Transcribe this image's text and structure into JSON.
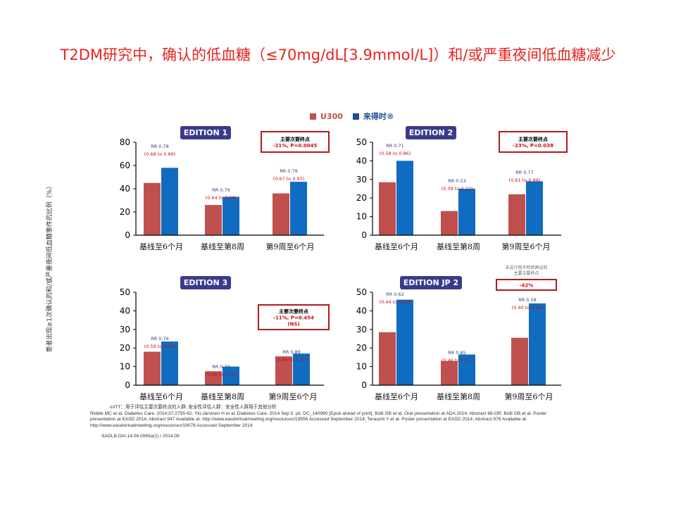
{
  "page": {
    "title": "T2DM研究中，确认的低血糖（≤70mg/dL[3.9mmol/L]）和/或严重夜间低血糖减少",
    "ylabel": "患者出现≥1次确认的和/或严重夜间低血糖事件的比例（%）",
    "legend": [
      {
        "label": "U300",
        "color": "#c0504d"
      },
      {
        "label": "来得时®",
        "color": "#0f6cc0"
      }
    ],
    "footnotes": {
      "mitt": "mITT：用于评估主要次要终点的人群; 安全性评估人群：安全性人群用于其他分析",
      "refs": "Riddle MC et al. Diabetes Care. 2014;37:2755-62; Yki-Järvinen H et al. Diabetes Care. 2014 Sep 5. pii: DC_140990 [Epub ahead of print]; Bolli GB et al. Oral presentation at ADA 2014; Abstract 68-OR. Bolli GB et al. Poster presentation at EASD 2014; Abstract 947 Available at: http://www.easdvirtualmeeting.org/resources/19556 Accessed September 2014; Terauchi Y et al. Poster presentation at EASD 2014; Abstract 976 Available at: http://www.easdvirtualmeeting.org/resources/19078 Accessed September 2014",
      "doc_id": "SAGLB.DIA.14.06.0065a(1) / 2014.09"
    }
  },
  "chart_data": [
    {
      "type": "bar",
      "edition": "EDITION 1",
      "categories": [
        "基线至6个月",
        "基线至第8周",
        "第9周至6个月"
      ],
      "ylim": [
        0,
        80
      ],
      "yticks": [
        0,
        20,
        40,
        60,
        80
      ],
      "series": [
        {
          "name": "U300",
          "values": [
            45,
            26,
            36
          ]
        },
        {
          "name": "来得时®",
          "values": [
            58,
            33,
            46
          ]
        }
      ],
      "rr": [
        {
          "rr": "RR 0.78",
          "ci": "(0.68 to 0.89)"
        },
        {
          "rr": "RR 0.79",
          "ci": "(0.64 to 0.98)"
        },
        {
          "rr": "RR 0.79",
          "ci": "(0.67 to 0.93)"
        }
      ],
      "endpoint": [
        "主要次要终点",
        "-21%, P=0.0045"
      ]
    },
    {
      "type": "bar",
      "edition": "EDITION 2",
      "categories": [
        "基线至6个月",
        "基线至第8周",
        "第9周至6个月"
      ],
      "ylim": [
        0,
        50
      ],
      "yticks": [
        0,
        10,
        20,
        30,
        40,
        50
      ],
      "series": [
        {
          "name": "U300",
          "values": [
            28.5,
            13,
            22
          ]
        },
        {
          "name": "来得时®",
          "values": [
            40,
            25,
            29
          ]
        }
      ],
      "rr": [
        {
          "rr": "RR 0.71",
          "ci": "(0.58 to 0.86)"
        },
        {
          "rr": "RR 0.53",
          "ci": "(0.39 to 0.72)"
        },
        {
          "rr": "RR 0.77",
          "ci": "(0.61 to 0.99)"
        }
      ],
      "endpoint": [
        "主要次要终点",
        "-23%, P=0.038"
      ]
    },
    {
      "type": "bar",
      "edition": "EDITION 3",
      "categories": [
        "基线至6个月",
        "基线至第8周",
        "第9周至6个月"
      ],
      "ylim": [
        0,
        50
      ],
      "yticks": [
        0,
        10,
        20,
        30,
        40,
        50
      ],
      "series": [
        {
          "name": "U300",
          "values": [
            18,
            7.5,
            15.5
          ]
        },
        {
          "name": "来得时®",
          "values": [
            23.5,
            10,
            17
          ]
        }
      ],
      "rr": [
        {
          "rr": "RR 0.76",
          "ci": "(0.59 to 0.99)"
        },
        {
          "rr": "RR 0.74",
          "ci": "(0.48 to 1.13)"
        },
        {
          "rr": "RR 0.89",
          "ci": "(0.66 to 1.20)"
        }
      ],
      "endpoint": [
        "主要次要终点",
        "-11%, P=0.454",
        "(NS)"
      ]
    },
    {
      "type": "bar",
      "edition": "EDITION JP 2",
      "categories": [
        "基线至6个月",
        "基线至第8周",
        "第9周至6个月"
      ],
      "ylim": [
        0,
        50
      ],
      "yticks": [
        0,
        10,
        20,
        30,
        40,
        50
      ],
      "series": [
        {
          "name": "U300",
          "values": [
            28.5,
            13,
            25.5
          ]
        },
        {
          "name": "来得时®",
          "values": [
            46,
            16.5,
            44
          ]
        }
      ],
      "rr": [
        {
          "rr": "RR 0.62",
          "ci": "(0.44 to 0.88)"
        },
        {
          "rr": "RR 0.85",
          "ci": "(0.46 to 1.5..."
        },
        {
          "rr": "RR 0.58",
          "ci": "(0.40 to 0.85)"
        }
      ],
      "endpoint": [
        "-42%"
      ],
      "endpoint_note": [
        "未设计用于检验预设的",
        "主要次要终点"
      ]
    }
  ]
}
